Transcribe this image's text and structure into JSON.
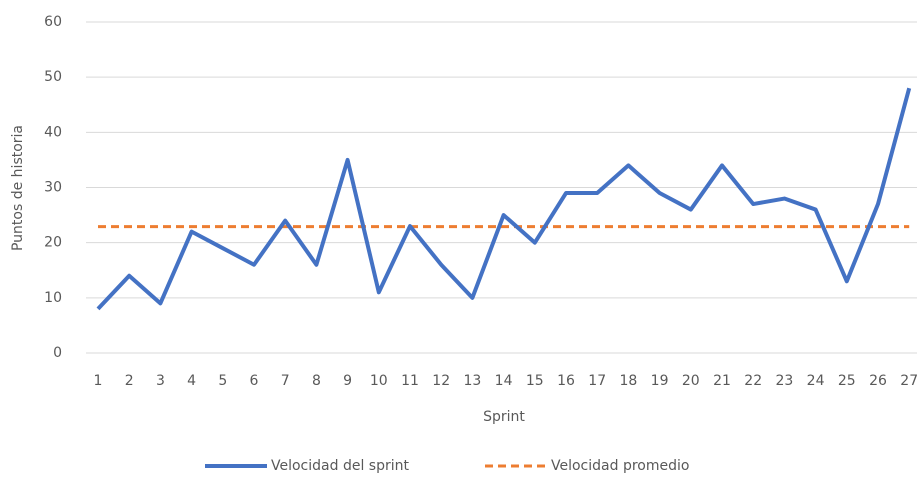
{
  "chart_data": {
    "type": "line",
    "y_label": "Puntos de historia",
    "x_label": "Sprint",
    "categories": [
      "1",
      "2",
      "3",
      "4",
      "5",
      "6",
      "7",
      "8",
      "9",
      "10",
      "11",
      "12",
      "13",
      "14",
      "15",
      "16",
      "17",
      "18",
      "19",
      "20",
      "21",
      "22",
      "23",
      "24",
      "25",
      "26",
      "27"
    ],
    "series": [
      {
        "name": "Velocidad del sprint",
        "color": "#4472c4",
        "dash": false,
        "values": [
          8,
          14,
          9,
          22,
          19,
          16,
          24,
          16,
          35,
          11,
          23,
          16,
          10,
          25,
          20,
          29,
          29,
          34,
          29,
          26,
          34,
          27,
          28,
          26,
          13,
          27,
          48
        ]
      },
      {
        "name": "Velocidad promedio",
        "color": "#ed7d31",
        "dash": true,
        "values": [
          22.9,
          22.9,
          22.9,
          22.9,
          22.9,
          22.9,
          22.9,
          22.9,
          22.9,
          22.9,
          22.9,
          22.9,
          22.9,
          22.9,
          22.9,
          22.9,
          22.9,
          22.9,
          22.9,
          22.9,
          22.9,
          22.9,
          22.9,
          22.9,
          22.9,
          22.9,
          22.9
        ]
      }
    ],
    "ylim": [
      0,
      60
    ],
    "yticks": [
      0,
      10,
      20,
      30,
      40,
      50,
      60
    ],
    "grid": true,
    "legend": "bottom"
  }
}
